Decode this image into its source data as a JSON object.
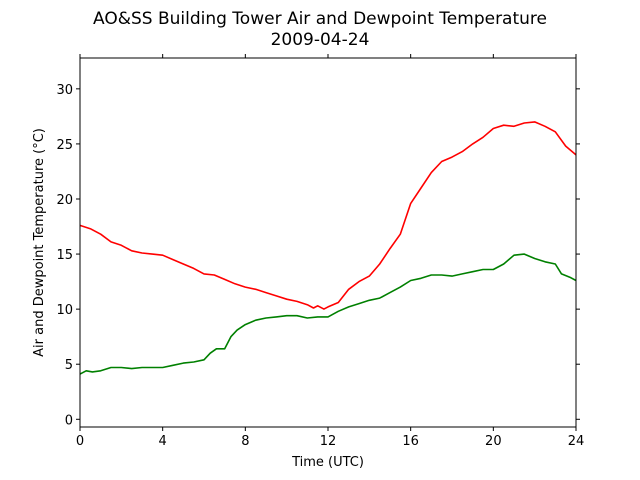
{
  "chart_data": {
    "type": "line",
    "title": "AO&SS Building Tower Air and Dewpoint Temperature",
    "subtitle": "2009-04-24",
    "xlabel": "Time (UTC)",
    "ylabel": "Air and Dewpoint Temperature (°C)",
    "xlim": [
      0,
      24
    ],
    "ylim": [
      -0.7,
      32.8
    ],
    "xticks": [
      0,
      4,
      8,
      12,
      16,
      20,
      24
    ],
    "yticks": [
      0,
      5,
      10,
      15,
      20,
      25,
      30
    ],
    "grid": false,
    "legend": "none",
    "series": [
      {
        "color": "#ff0000",
        "x": [
          0,
          0.5,
          1,
          1.5,
          2,
          2.5,
          3,
          3.5,
          4,
          4.5,
          5,
          5.5,
          6,
          6.5,
          7,
          7.5,
          8,
          8.5,
          9,
          9.5,
          10,
          10.5,
          11,
          11.3,
          11.5,
          11.8,
          12,
          12.5,
          13,
          13.5,
          14,
          14.5,
          15,
          15.5,
          16,
          16.5,
          17,
          17.5,
          18,
          18.5,
          19,
          19.5,
          20,
          20.5,
          21,
          21.5,
          22,
          22.5,
          23,
          23.5,
          24
        ],
        "values": [
          17.6,
          17.3,
          16.8,
          16.1,
          15.8,
          15.3,
          15.1,
          15.0,
          14.9,
          14.5,
          14.1,
          13.7,
          13.2,
          13.1,
          12.7,
          12.3,
          12.0,
          11.8,
          11.5,
          11.2,
          10.9,
          10.7,
          10.4,
          10.1,
          10.3,
          10.0,
          10.2,
          10.6,
          11.8,
          12.5,
          13.0,
          14.1,
          15.5,
          16.8,
          19.6,
          21.0,
          22.4,
          23.4,
          23.8,
          24.3,
          25.0,
          25.6,
          26.4,
          26.7,
          26.6,
          26.9,
          27.0,
          26.6,
          26.1,
          24.8,
          24.0
        ]
      },
      {
        "color": "#008000",
        "x": [
          0,
          0.3,
          0.6,
          1,
          1.5,
          2,
          2.5,
          3,
          3.5,
          4,
          4.5,
          5,
          5.5,
          6,
          6.3,
          6.6,
          7,
          7.3,
          7.6,
          8,
          8.5,
          9,
          9.5,
          10,
          10.5,
          11,
          11.5,
          12,
          12.5,
          13,
          13.5,
          14,
          14.5,
          15,
          15.5,
          16,
          16.5,
          17,
          17.5,
          18,
          18.5,
          19,
          19.5,
          20,
          20.5,
          21,
          21.5,
          22,
          22.5,
          23,
          23.3,
          23.7,
          24
        ],
        "values": [
          4.1,
          4.4,
          4.3,
          4.4,
          4.7,
          4.7,
          4.6,
          4.7,
          4.7,
          4.7,
          4.9,
          5.1,
          5.2,
          5.4,
          6.0,
          6.4,
          6.4,
          7.5,
          8.1,
          8.6,
          9.0,
          9.2,
          9.3,
          9.4,
          9.4,
          9.2,
          9.3,
          9.3,
          9.8,
          10.2,
          10.5,
          10.8,
          11.0,
          11.5,
          12.0,
          12.6,
          12.8,
          13.1,
          13.1,
          13.0,
          13.2,
          13.4,
          13.6,
          13.6,
          14.1,
          14.9,
          15.0,
          14.6,
          14.3,
          14.1,
          13.2,
          12.9,
          12.6
        ]
      }
    ]
  }
}
